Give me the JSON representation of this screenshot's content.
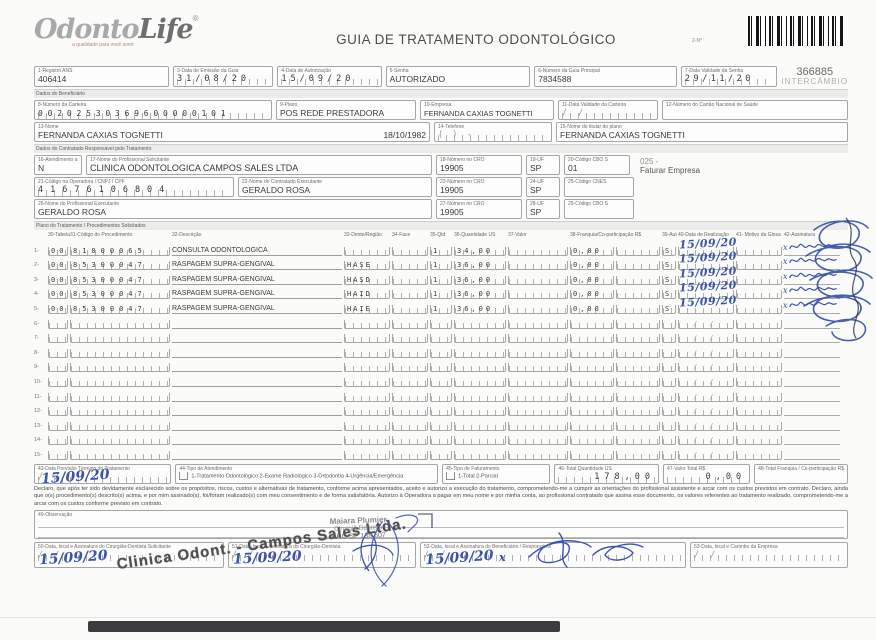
{
  "header": {
    "logo_text_1": "Odonto",
    "logo_text_2": "Life",
    "logo_reg": "®",
    "logo_tagline": "a qualidade para você sorrir",
    "title": "GUIA DE TRATAMENTO ODONTOLÓGICO",
    "form_number_label": "2-N°",
    "form_number": "366885",
    "form_number_sub": "INTERCÂMBIO"
  },
  "row1": {
    "registro_ans_label": "1-Registro ANS",
    "registro_ans": "406414",
    "emissao_label": "3-Data de Emissão da Guia",
    "emissao": "31/08/20",
    "autorizacao_label": "4-Data de Autorização",
    "autorizacao": "15/09/20",
    "senha_label": "5-Senha",
    "senha": "AUTORIZADO",
    "guia_principal_label": "6-Número da Guia Principal",
    "guia_principal": "7834588",
    "validade_senha_label": "7-Data Validade da Senha",
    "validade_senha": "29/11/20"
  },
  "beneficiario": {
    "section_label": "Dados do Beneficiário",
    "carteira_label": "8-Número da Carteira",
    "carteira": "00202530369600000101",
    "plano_label": "9-Plano",
    "plano": "POS REDE PRESTADORA",
    "empresa_label": "10-Empresa",
    "empresa": "FERNANDA CAXIAS TOGNETTI",
    "validade_carteira_label": "11-Data Validade da Carteira",
    "validade_carteira": "/        /",
    "cns_label": "12-Número do Cartão Nacional de Saúde",
    "cns": "",
    "nome_label": "13-Nome",
    "nome": "FERNANDA CAXIAS TOGNETTI",
    "nascimento": "18/10/1982",
    "telefone_label": "14-Telefone",
    "telefone": "(      )          -",
    "titular_label": "15-Nome do titular do plano",
    "titular": "FERNANDA CAXIAS TOGNETTI"
  },
  "contratado": {
    "section_label": "Dados do Contratado Responsável pelo Tratamento",
    "rn_label": "16-Atendimento a RN",
    "rn": "N",
    "solicitante_label": "17-Nome do Profissional Solicitante",
    "solicitante": "CLINICA ODONTOLOGICA CAMPOS SALES LTDA",
    "cro18_label": "18-Número no CRO",
    "cro18": "19905",
    "uf19_label": "19-UF",
    "uf19": "SP",
    "cbo20_label": "20-Código CBO S",
    "cbo20": "01",
    "nota_codigo": "025 -",
    "nota_texto": "Faturar Empresa",
    "operadora_label": "21-Código na Operadora / CNPJ / CPF",
    "operadora": "41676106804",
    "executante_label": "22-Nome do Contratado Executante",
    "executante": "GERALDO ROSA",
    "cro23_label": "23-Número no CRO",
    "cro23": "19905",
    "uf24_label": "24-UF",
    "uf24": "SP",
    "cnes_label": "25-Código CNES",
    "cnes": "",
    "prof_exec_label": "26-Nome do Profissional Executante",
    "prof_exec": "GERALDO ROSA",
    "cro27_label": "27-Número no CRO",
    "cro27": "19905",
    "uf28_label": "28-UF",
    "uf28": "SP",
    "cbo29_label": "29-Código CBO S",
    "cbo29": ""
  },
  "tratamento": {
    "section_label": "Plano do Tratamento / Procedimentos Solicitados",
    "headers": [
      "30-Tabela",
      "31-Código do Procedimento",
      "32-Descrição",
      "33-Dente/Região",
      "34-Face",
      "35-Qtd",
      "36-Quantidade US",
      "37-Valor",
      "38-Franquia/Co-participação R$",
      "",
      "39-Aut",
      "40-Data de Realização",
      "41- Motivo da Glosa",
      "42-Assinatura"
    ],
    "rows": [
      {
        "n": "1-",
        "tabela": "00",
        "codigo": "81000065",
        "descricao": "CONSULTA ODONTOLOGICA",
        "dente": "",
        "face": "",
        "qtd": "1",
        "qtd_us": "34,00",
        "valor": "",
        "franquia": "0,00",
        "aut": "S",
        "data": "15/09/20",
        "motivo": "",
        "assinado": true
      },
      {
        "n": "2-",
        "tabela": "00",
        "codigo": "85300047",
        "descricao": "RASPAGEM SUPRA-GENGIVAL",
        "dente": "HASE",
        "face": "",
        "qtd": "1",
        "qtd_us": "36,00",
        "valor": "",
        "franquia": "0,00",
        "aut": "S",
        "data": "15/09/20",
        "motivo": "",
        "assinado": true
      },
      {
        "n": "3-",
        "tabela": "00",
        "codigo": "85300047",
        "descricao": "RASPAGEM SUPRA-GENGIVAL",
        "dente": "HASD",
        "face": "",
        "qtd": "1",
        "qtd_us": "36,00",
        "valor": "",
        "franquia": "0,00",
        "aut": "S",
        "data": "15/09/20",
        "motivo": "",
        "assinado": true
      },
      {
        "n": "4-",
        "tabela": "00",
        "codigo": "85300047",
        "descricao": "RASPAGEM SUPRA-GENGIVAL",
        "dente": "HAID",
        "face": "",
        "qtd": "1",
        "qtd_us": "36,00",
        "valor": "",
        "franquia": "0,00",
        "aut": "S",
        "data": "15/09/20",
        "motivo": "",
        "assinado": true
      },
      {
        "n": "5-",
        "tabela": "00",
        "codigo": "85300047",
        "descricao": "RASPAGEM SUPRA-GENGIVAL",
        "dente": "HAIE",
        "face": "",
        "qtd": "1",
        "qtd_us": "36,00",
        "valor": "",
        "franquia": "0,00",
        "aut": "S",
        "data": "15/09/20",
        "motivo": "",
        "assinado": true
      },
      {
        "n": "6-"
      },
      {
        "n": "7-"
      },
      {
        "n": "8-"
      },
      {
        "n": "9-"
      },
      {
        "n": "10-"
      },
      {
        "n": "11-"
      },
      {
        "n": "12-"
      },
      {
        "n": "13-"
      },
      {
        "n": "14-"
      },
      {
        "n": "15-"
      }
    ]
  },
  "rodape": {
    "previsao_label": "43-Data Previsão Término do Tratamento",
    "previsao": "15/09/20",
    "tipo_atendimento_label": "44-Tipo de Atendimento",
    "tipo_atendimento_opcoes": "1-Tratamento Odontológico   2-Exame Radiológico   3-Ortodontia   4-Urgência/Emergência",
    "tipo_faturamento_label": "45-Tipo de Faturamento",
    "tipo_faturamento_opcoes": "1-Total  2-Parcial",
    "total_us_label": "46-Total Quantidade US",
    "total_us": "178,00",
    "valor_total_label": "47-Valor Total R$",
    "valor_total": "0,00",
    "total_franquia_label": "48-Total Franquia / Co-participação R$",
    "total_franquia": ""
  },
  "declaracao": "Declaro, que após ter sido devidamente esclarecido sobre os propósitos, riscos, custos e alternativas de tratamento, conforme acima apresentados, aceito e autorizo a execução do tratamento, comprometendo-me a cumprir as orientações do profissional assistente e arcar com os custos previstos em contrato. Declaro, ainda que o(s) procedimento(s) descrito(s) acima, e por mim assinado(s), foi/foram realizado(s) com meu consentimento e de forma satisfatória. Autorizo à Operadora a pagar em meu nome e por minha conta, ao profissional contratado que assina esse documento, os valores referentes ao tratamento realizado, comprometendo-me a arcar com os custos conforme previsto em contrato.",
  "observacao_label": "49-Observação",
  "assinaturas": {
    "s50_label": "50-Data, local e Assinatura do Cirurgião-Dentista Solicitante",
    "s50_data": "15/09/20",
    "s51_label": "51-Data, local e Assinatura do Cirurgião-Dentista",
    "s51_data": "15/09/20",
    "s52_label": "52-Data, local e Assinatura do Beneficiário / Responsável",
    "s52_data": "15/09/20",
    "s53_label": "53-Data, local e Carimbo da Empresa",
    "s53_data": "/        /"
  },
  "carimbos": {
    "clinica": "Clinica Odont. - Campos Sales Ltda.",
    "dentista_nome": "Maiara Plumier",
    "dentista_titulo": "Cirurgiã Dentista",
    "dentista_cro": "CRO-SP 138.607"
  }
}
